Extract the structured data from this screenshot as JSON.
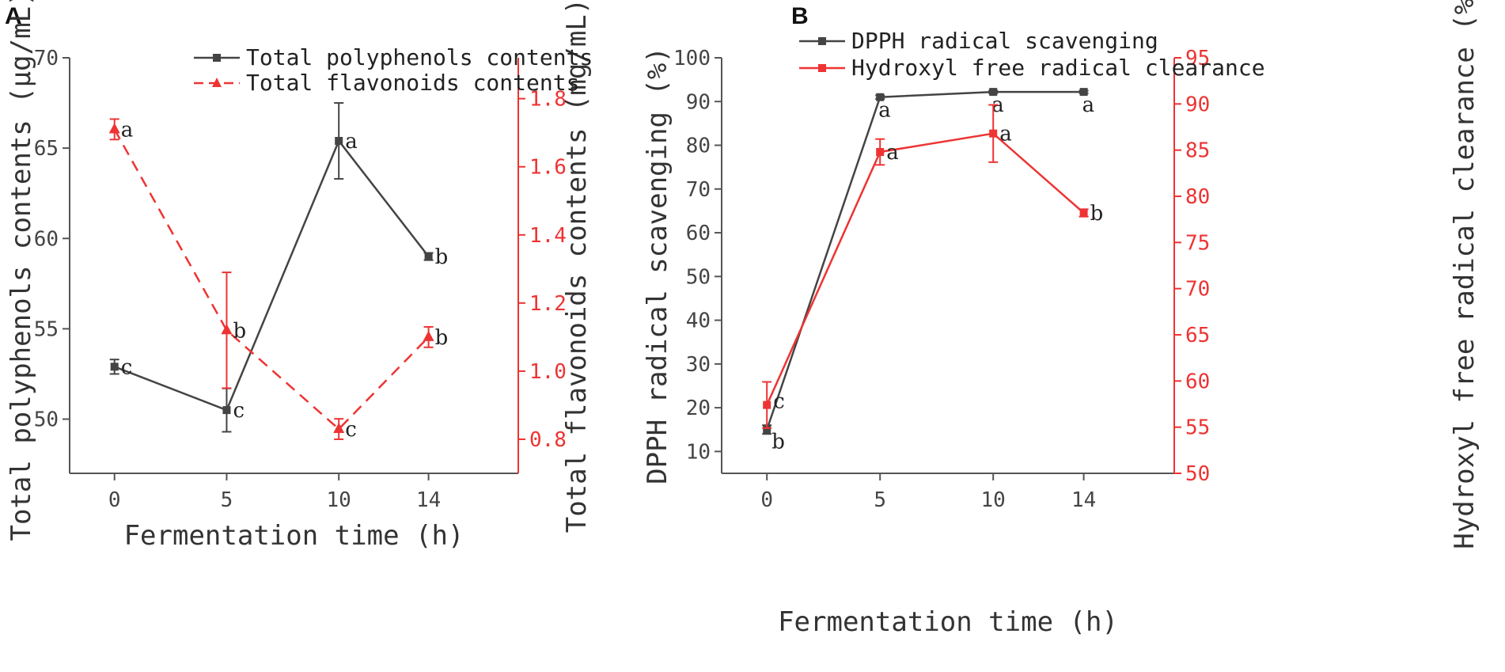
{
  "chart_data": [
    {
      "panel": "A",
      "type": "line",
      "title": "",
      "xlabel": "Fermentation time (h)",
      "ylabel": "Total polyphenols contents (μg/mL)",
      "ylabel_right": "Total flavonoids contents (mg/mL)",
      "x_ticks": [
        "0",
        "5",
        "10",
        "14"
      ],
      "y_left_ticks": [
        "50",
        "55",
        "60",
        "65",
        "70"
      ],
      "y_right_ticks": [
        "0.8",
        "1.0",
        "1.2",
        "1.4",
        "1.6",
        "1.8"
      ],
      "xlim": [
        -2,
        18
      ],
      "ylim_left": [
        47,
        70
      ],
      "ylim_right": [
        0.7,
        1.92
      ],
      "series": [
        {
          "name": "Total polyphenols contents",
          "axis": "left",
          "color": "#444444",
          "line_style": "solid",
          "marker": "square",
          "x": [
            0,
            5,
            10,
            14
          ],
          "values": [
            52.9,
            50.5,
            65.4,
            59.0
          ],
          "errors": [
            0.4,
            1.2,
            2.1,
            0.2
          ],
          "sig_labels": [
            "c",
            "c",
            "a",
            "b"
          ]
        },
        {
          "name": "Total flavonoids contents",
          "axis": "right",
          "color": "#ee3333",
          "line_style": "dashed",
          "marker": "triangle",
          "x": [
            0,
            5,
            10,
            14
          ],
          "values": [
            1.71,
            1.12,
            0.83,
            1.1
          ],
          "errors": [
            0.03,
            0.17,
            0.03,
            0.03
          ],
          "sig_labels": [
            "a",
            "b",
            "c",
            "b"
          ]
        }
      ]
    },
    {
      "panel": "B",
      "type": "line",
      "title": "",
      "xlabel": "Fermentation time (h)",
      "ylabel": "DPPH radical scavenging (%)",
      "ylabel_right": "Hydroxyl free radical clearance (%)",
      "x_ticks": [
        "0",
        "5",
        "10",
        "14"
      ],
      "y_left_ticks": [
        "10",
        "20",
        "30",
        "40",
        "50",
        "60",
        "70",
        "80",
        "90",
        "100"
      ],
      "y_right_ticks": [
        "50",
        "55",
        "60",
        "65",
        "70",
        "75",
        "80",
        "85",
        "90",
        "95"
      ],
      "xlim": [
        -2,
        18
      ],
      "ylim_left": [
        5,
        100
      ],
      "ylim_right": [
        50,
        95
      ],
      "series": [
        {
          "name": "DPPH radical scavenging",
          "axis": "left",
          "color": "#444444",
          "line_style": "solid",
          "marker": "square",
          "x": [
            0,
            5,
            10,
            14
          ],
          "values": [
            15.0,
            91.0,
            92.2,
            92.2
          ],
          "errors": [
            1.0,
            0.4,
            0.3,
            0.3
          ],
          "sig_labels": [
            "b",
            "a",
            "a",
            "a"
          ]
        },
        {
          "name": "Hydroxyl free radical clearance",
          "axis": "right",
          "color": "#ee3333",
          "line_style": "solid",
          "marker": "square",
          "x": [
            0,
            5,
            10,
            14
          ],
          "values": [
            57.4,
            84.8,
            86.8,
            78.2
          ],
          "errors": [
            2.5,
            1.4,
            3.1,
            0.4
          ],
          "sig_labels": [
            "c",
            "a",
            "a",
            "b"
          ]
        }
      ]
    }
  ]
}
